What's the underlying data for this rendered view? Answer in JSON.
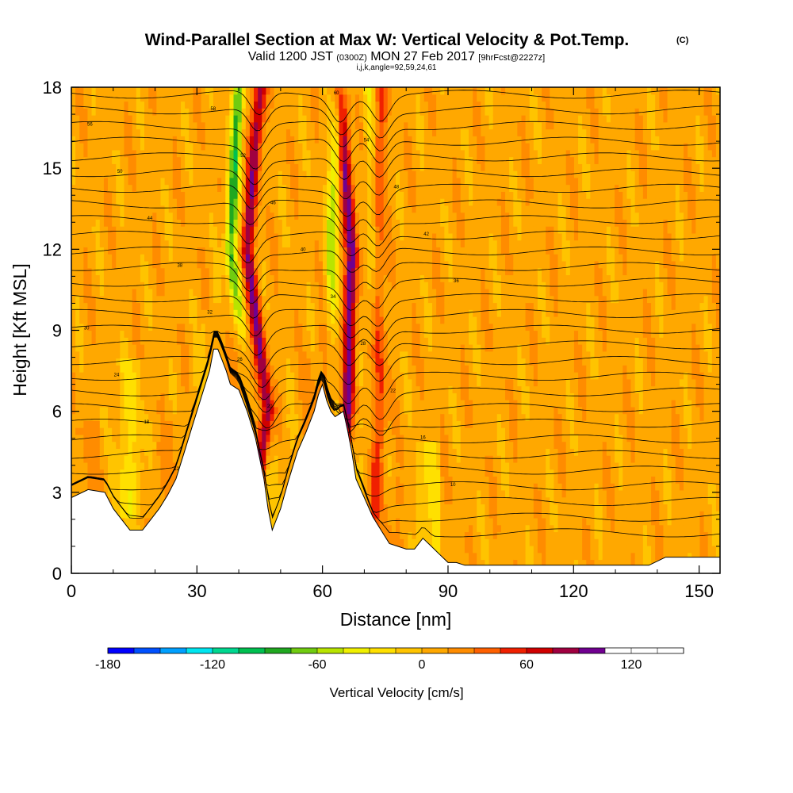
{
  "title": {
    "main": "Wind-Parallel Section at Max W: Vertical Velocity & Pot.Temp.",
    "main_tag": "(C)",
    "valid_prefix": "Valid 1200 JST",
    "valid_utc": "(0300Z)",
    "valid_date": "MON 27 Feb 2017",
    "forecast": "[9hrFcst@2227z]",
    "indices": "i,j,k,angle=92,59,24,61"
  },
  "chart_data": {
    "type": "heatmap",
    "xlabel": "Distance [nm]",
    "ylabel": "Height [Kft MSL]",
    "xlim": [
      0,
      155
    ],
    "ylim": [
      0,
      18
    ],
    "xticks": [
      0,
      30,
      60,
      90,
      120,
      150
    ],
    "yticks": [
      0,
      3,
      6,
      9,
      12,
      15,
      18
    ],
    "xtick_labels": [
      "0",
      "30",
      "60",
      "90",
      "120",
      "150"
    ],
    "ytick_labels": [
      "0",
      "3",
      "6",
      "9",
      "12",
      "15",
      "18"
    ],
    "terrain": {
      "x": [
        0,
        4,
        8,
        10,
        12,
        14,
        17,
        19,
        21,
        23,
        25,
        27,
        29,
        31,
        33,
        34,
        35,
        37,
        38,
        40,
        42,
        44,
        46,
        47,
        48,
        50,
        52,
        54,
        56,
        58,
        59,
        60,
        61,
        62,
        63,
        64,
        65,
        66,
        67,
        68,
        70,
        72,
        74,
        76,
        78,
        80,
        82,
        84,
        86,
        88,
        90,
        92,
        94,
        96,
        100,
        110,
        120,
        130,
        138,
        142,
        150,
        155
      ],
      "height": [
        2.8,
        3.1,
        3.0,
        2.4,
        2.0,
        1.6,
        1.6,
        2.0,
        2.4,
        2.9,
        3.5,
        4.5,
        5.5,
        6.5,
        7.5,
        8.3,
        8.3,
        7.5,
        7.0,
        6.8,
        6.0,
        5.0,
        3.5,
        2.4,
        1.6,
        2.4,
        3.5,
        4.5,
        5.2,
        6.0,
        6.6,
        7.0,
        6.4,
        6.0,
        5.8,
        5.9,
        6.0,
        5.3,
        4.5,
        3.5,
        2.8,
        2.1,
        1.6,
        1.1,
        1.0,
        0.9,
        0.9,
        1.3,
        1.0,
        0.7,
        0.4,
        0.4,
        0.3,
        0.3,
        0.3,
        0.3,
        0.3,
        0.3,
        0.3,
        0.6,
        0.6,
        0.6
      ]
    },
    "theta_contours_c": [
      4,
      6,
      8,
      10,
      12,
      14,
      16,
      18,
      20,
      22,
      24,
      26,
      28,
      30,
      32,
      34,
      36,
      38,
      40,
      42,
      44,
      46,
      48,
      50,
      52,
      54,
      56,
      58,
      60
    ],
    "colorbar": {
      "title": "Vertical Velocity [cm/s]",
      "min": -180,
      "max": 150,
      "step": 15,
      "tick_values": [
        -180,
        -120,
        -60,
        0,
        60,
        120
      ],
      "tick_labels": [
        "-180",
        "-120",
        "-60",
        "0",
        "60",
        "120"
      ],
      "colors": [
        "#0000ff",
        "#0050ff",
        "#00a0ff",
        "#00e6f0",
        "#00d890",
        "#00c050",
        "#20a820",
        "#70cc10",
        "#b8e400",
        "#f0f000",
        "#ffe000",
        "#ffc400",
        "#ffa800",
        "#ff8c00",
        "#ff6000",
        "#f02000",
        "#d00000",
        "#a00040",
        "#700090"
      ]
    },
    "updraft_bands": [
      {
        "x": [
          41,
          47,
          42,
          45
        ],
        "strength": 80
      },
      {
        "x": [
          61,
          66,
          67,
          64
        ],
        "strength": 90
      },
      {
        "x": [
          71,
          74,
          73,
          74
        ],
        "strength": 40
      }
    ],
    "downdraft_bands": [
      {
        "x": [
          38,
          43,
          38,
          40
        ],
        "strength": -90
      },
      {
        "x": [
          59,
          63,
          62,
          64
        ],
        "strength": -60
      },
      {
        "x": [
          69,
          71,
          72,
          71
        ],
        "strength": -30
      }
    ]
  }
}
